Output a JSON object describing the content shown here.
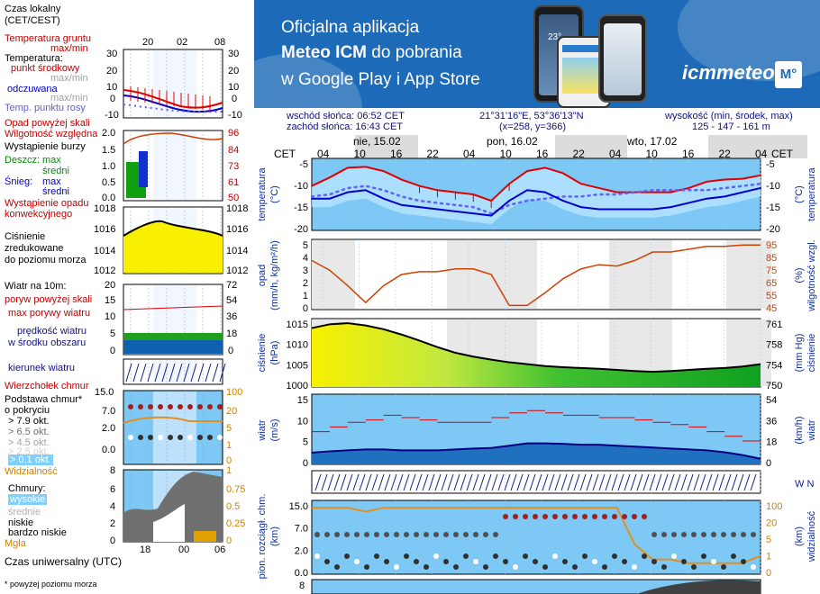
{
  "legend": {
    "local_time": [
      "Czas lokalny",
      "(CET/CEST)"
    ],
    "local_ticks": [
      "20",
      "02",
      "08"
    ],
    "soil_temp": [
      "Temperatura gruntu",
      "max/min"
    ],
    "temperature": "Temperatura:",
    "midpoint": "punkt środkowy",
    "max_min_1": "max/min",
    "feels_like": "odczuwana",
    "max_min_2": "max/min",
    "dew_point": "Temp. punktu rosy",
    "temp_ticks": [
      "30",
      "20",
      "10",
      "0",
      "-10"
    ],
    "precip_above_scale": "Opad powyżej skali",
    "humidity": "Wilgotność względna",
    "storm": "Wystąpienie burzy",
    "rain": "Deszcz:",
    "rain_max": "max",
    "rain_mean": "średni",
    "snow": "Śnieg:",
    "snow_max": "max",
    "snow_mean": "średni",
    "precip_occurrence": [
      "Wystąpienie opadu",
      "konwekcyjnego"
    ],
    "precip_ticks_left": [
      "2.0",
      "1.5",
      "1.0",
      "0.5",
      "0.0"
    ],
    "precip_ticks_right": [
      "96",
      "84",
      "73",
      "61",
      "50"
    ],
    "pressure": [
      "Ciśnienie",
      "zredukowane",
      "do poziomu morza"
    ],
    "pressure_ticks_left": [
      "1018",
      "1016",
      "1014",
      "1012"
    ],
    "pressure_ticks_right": [
      "1018",
      "1016",
      "1014",
      "1012"
    ],
    "wind_at": "Wiatr na 10m:",
    "gust_above": "poryw powyżej skali",
    "gust_max": "max porywy wiatru",
    "wind_mean": [
      "prędkość wiatru",
      "w środku obszaru"
    ],
    "wind_ticks_left": [
      "20",
      "15",
      "10",
      "5",
      "0"
    ],
    "wind_ticks_right": [
      "72",
      "54",
      "36",
      "18",
      "0"
    ],
    "wind_dir": "kierunek wiatru",
    "cloud_top": "Wierzchołek chmur",
    "cloud_base": [
      "Podstawa chmur*",
      "o pokryciu"
    ],
    "cover_levels": [
      "> 7.9 okt.",
      "> 6.5 okt.",
      "> 4.5 okt.",
      "> 2.5 okt.",
      "> 0.1 okt."
    ],
    "cloud_ticks_left": [
      "15.0",
      "7.0",
      "2.0",
      "0.0"
    ],
    "cloud_ticks_right": [
      "100",
      "20",
      "5",
      "1",
      "0"
    ],
    "visibility": "Widzialność",
    "clouds": "Chmury:",
    "cl_high": "wysokie",
    "cl_mid": "średnie",
    "cl_low": "niskie",
    "cl_vlow": "bardzo niskie",
    "fog": "Mgła",
    "clouds_ticks_left": [
      "8",
      "6",
      "4",
      "2",
      "0"
    ],
    "clouds_ticks_right": [
      "1",
      "0.75",
      "0.5",
      "0.25",
      "0"
    ],
    "utc_label": "Czas uniwersalny (UTC)",
    "utc_ticks": [
      "18",
      "00",
      "06"
    ],
    "footnote": "* powyżej poziomu morza"
  },
  "banner": {
    "line1": "Oficjalna aplikacja",
    "line2_bold": "Meteo ICM",
    "line2_rest": " do pobrania",
    "line3": "w Google Play i App Store",
    "brand": "icmmeteo",
    "brand_badge": "M°",
    "phone_temp": "23°"
  },
  "header": {
    "sunrise": "wschód słońca: 06:52 CET",
    "sunset": "zachód słońca: 16:43 CET",
    "coords": "21°31'16\"E, 53°36'13\"N",
    "grid": "(x=258, y=366)",
    "elev_label": "wysokość (min, środek, max)",
    "elev_values": "125 - 147 - 161 m"
  },
  "timeline": {
    "tz_left": "CET",
    "tz_right": "CET",
    "days": [
      "nie, 15.02",
      "pon, 16.02",
      "wto, 17.02"
    ],
    "hours": [
      "04",
      "10",
      "16",
      "22",
      "04",
      "10",
      "16",
      "22",
      "04",
      "10",
      "16",
      "22",
      "04"
    ]
  },
  "chart_data": [
    {
      "type": "line",
      "title": "temperatura",
      "ylabel": "temperatura (°C)",
      "ylim": [
        -20,
        -3
      ],
      "yticks": [
        "-5",
        "-10",
        "-15",
        "-20"
      ],
      "series": [
        {
          "name": "max",
          "color": "#e00000",
          "values": [
            -9.5,
            -7.5,
            -5.2,
            -5.0,
            -6.0,
            -8.0,
            -9.5,
            -10.5,
            -11.0,
            -11.5,
            -13.0,
            -9.0,
            -6.0,
            -5.2,
            -6.5,
            -9.0,
            -10.0,
            -11.0,
            -11.0,
            -11.0,
            -11.0,
            -10.0,
            -8.5,
            -8.0,
            -7.8,
            -7.0
          ]
        },
        {
          "name": "punkt środkowy",
          "color": "#6060ff",
          "values": [
            -12.0,
            -11.5,
            -10.0,
            -9.5,
            -10.5,
            -12.0,
            -13.0,
            -13.5,
            -14.0,
            -14.5,
            -16.0,
            -14.0,
            -13.0,
            -12.5,
            -12.0,
            -12.0,
            -11.5,
            -11.5,
            -11.0,
            -10.5,
            -10.5,
            -10.5,
            -10.5,
            -10.0,
            -9.5,
            -9.0
          ]
        },
        {
          "name": "odczuwana",
          "color": "#0000c8",
          "values": [
            -12.5,
            -12.5,
            -11.0,
            -10.5,
            -12.5,
            -14.0,
            -14.5,
            -15.0,
            -15.5,
            -16.0,
            -16.5,
            -13.0,
            -10.5,
            -11.0,
            -13.0,
            -14.5,
            -15.0,
            -15.0,
            -15.0,
            -15.0,
            -14.5,
            -13.5,
            -12.5,
            -12.0,
            -11.0,
            -10.0
          ]
        }
      ]
    },
    {
      "type": "line",
      "title": "opad",
      "ylabel": "opad (mm/h, kg/m²/h)",
      "ylabel_right": "wilgotność wzgl. (%)",
      "ylim": [
        0,
        5
      ],
      "yticks": [
        "5",
        "4",
        "3",
        "2",
        "1",
        "0"
      ],
      "yticks_right": [
        "95",
        "85",
        "75",
        "65",
        "55",
        "45"
      ],
      "series": [
        {
          "name": "wilgotność",
          "color": "#d04000",
          "values": [
            80,
            73,
            62,
            50,
            62,
            70,
            72,
            72,
            74,
            74,
            70,
            48,
            48,
            57,
            67,
            74,
            77,
            76,
            80,
            86,
            86,
            88,
            90,
            90,
            91,
            91
          ]
        }
      ]
    },
    {
      "type": "area",
      "title": "ciśnienie",
      "ylabel": "ciśnienie (hPa)",
      "ylabel_right": "(mm Hg) ciśnienie",
      "ylim": [
        1000,
        1018
      ],
      "yticks": [
        "1015",
        "1010",
        "1005",
        "1000"
      ],
      "yticks_right": [
        "761",
        "758",
        "754",
        "750"
      ],
      "series": [
        {
          "name": "ciśnienie",
          "color": "#000000",
          "values": [
            1015.5,
            1016.5,
            1016.8,
            1016.2,
            1015.2,
            1013.8,
            1012.2,
            1010.5,
            1009.0,
            1008.0,
            1007.2,
            1006.5,
            1006.0,
            1005.5,
            1005.2,
            1005.0,
            1004.8,
            1004.5,
            1004.2,
            1004.0,
            1004.2,
            1004.5,
            1004.8,
            1005.0,
            1005.4,
            1006.0
          ]
        }
      ]
    },
    {
      "type": "line",
      "title": "wiatr",
      "ylabel": "wiatr (m/s)",
      "ylabel_right": "(km/h)",
      "ylim": [
        0,
        15
      ],
      "yticks": [
        "15",
        "10",
        "5",
        "0"
      ],
      "yticks_right": [
        "54",
        "36",
        "18",
        "0"
      ],
      "series": [
        {
          "name": "max porywy",
          "color": "#d00000",
          "values": [
            7.0,
            8.0,
            9.0,
            9.5,
            10.5,
            10.0,
            9.5,
            9.0,
            9.0,
            9.0,
            10.0,
            11.0,
            11.5,
            11.0,
            10.5,
            10.5,
            10.0,
            10.0,
            9.5,
            9.0,
            8.5,
            8.0,
            7.0,
            6.0,
            5.0,
            4.0
          ]
        },
        {
          "name": "prędkość",
          "color": "#0000a0",
          "values": [
            2.5,
            2.8,
            3.0,
            3.2,
            3.2,
            3.0,
            3.0,
            3.0,
            3.2,
            3.4,
            3.5,
            4.0,
            4.5,
            4.5,
            4.4,
            4.2,
            4.2,
            4.0,
            3.8,
            3.6,
            3.4,
            3.2,
            3.0,
            2.6,
            2.0,
            1.2
          ]
        }
      ]
    },
    {
      "type": "line",
      "title": "widzialność",
      "ylabel": "pion. rozciągł. chm. (km)",
      "ylabel_right": "(km) widzialność",
      "ylim": [
        0,
        15
      ],
      "yticks": [
        "15.0",
        "7.0",
        "2.0",
        "0.0"
      ],
      "yticks_right": [
        "100",
        "20",
        "5",
        "1",
        "0"
      ],
      "series": [
        {
          "name": "widzialność",
          "color": "#e09020",
          "values": [
            18,
            18,
            18,
            17,
            18,
            18,
            18,
            18,
            18,
            18,
            18,
            18,
            18,
            18,
            18,
            18,
            18,
            18,
            8,
            4,
            4,
            3,
            3,
            3,
            3,
            5
          ]
        }
      ]
    }
  ],
  "colors": {
    "banner_bg": "#1d6bb8",
    "highlight": "#7fd0ff",
    "chart_bg": "#7ec8f5",
    "night": "#d0d0d0"
  }
}
